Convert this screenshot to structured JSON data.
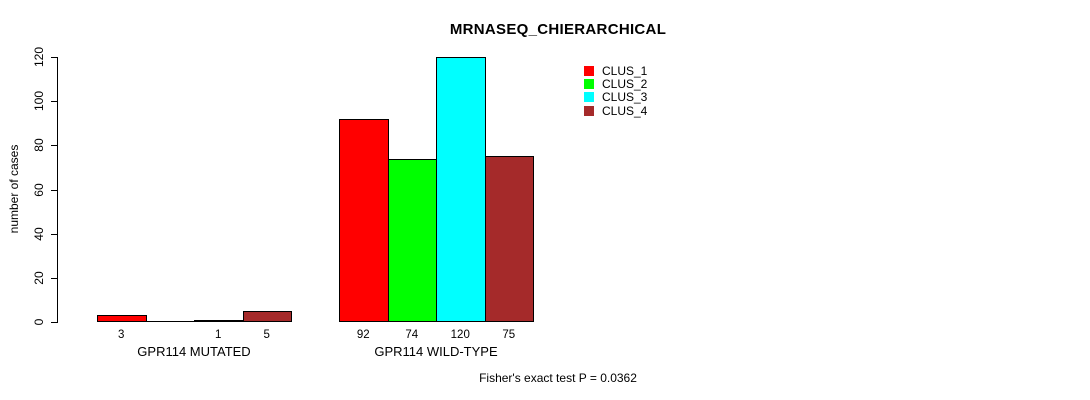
{
  "chart_data": {
    "type": "bar",
    "title": "MRNASEQ_CHIERARCHICAL",
    "ylabel": "number of cases",
    "xlabel": "",
    "ylim": [
      0,
      120
    ],
    "yticks": [
      0,
      20,
      40,
      60,
      80,
      100,
      120
    ],
    "grid": false,
    "legend_position": "top-right",
    "groups": [
      "GPR114 MUTATED",
      "GPR114 WILD-TYPE"
    ],
    "series": [
      {
        "name": "CLUS_1",
        "color": "#FF0000",
        "values": [
          3,
          92
        ]
      },
      {
        "name": "CLUS_2",
        "color": "#00FF00",
        "values": [
          0,
          74
        ]
      },
      {
        "name": "CLUS_3",
        "color": "#00FFFF",
        "values": [
          1,
          120
        ]
      },
      {
        "name": "CLUS_4",
        "color": "#A52A2A",
        "values": [
          5,
          75
        ]
      }
    ],
    "bar_labels": [
      [
        "3",
        "",
        "1",
        "5"
      ],
      [
        "92",
        "74",
        "120",
        "75"
      ]
    ],
    "annotation": "Fisher's exact test P = 0.0362"
  }
}
